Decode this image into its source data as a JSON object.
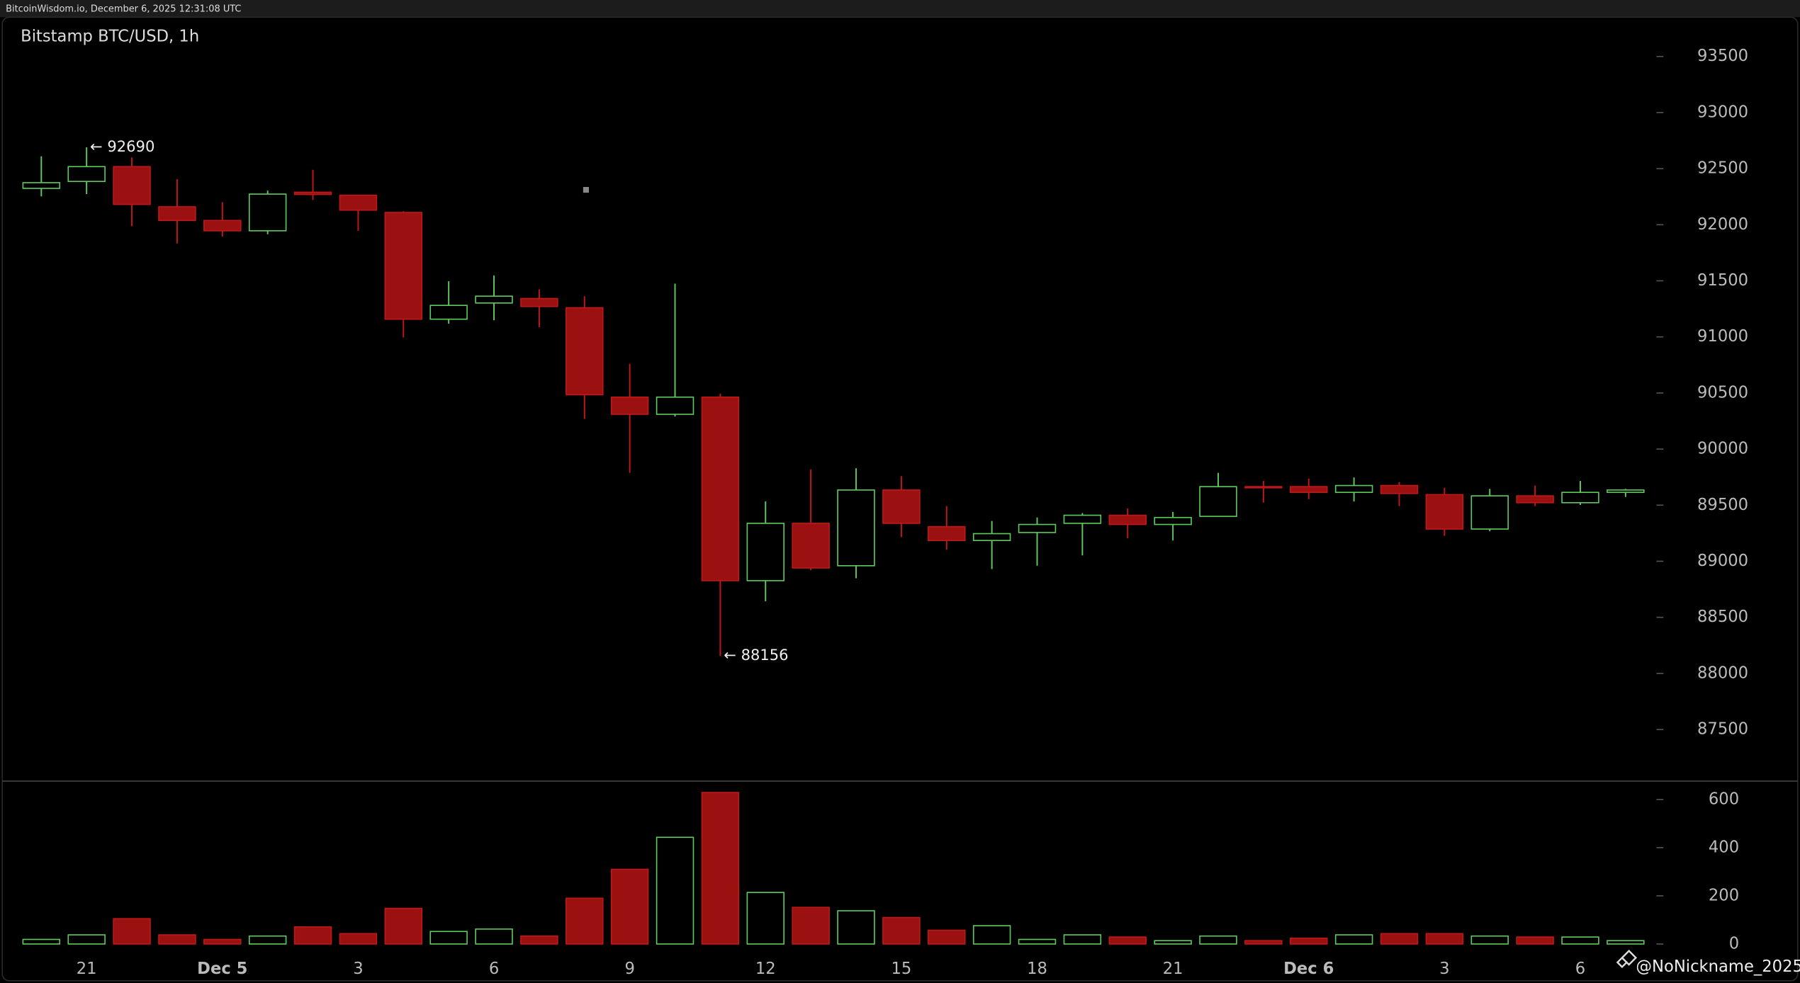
{
  "chart_data": {
    "type": "candlestick",
    "header": "BitcoinWisdom.io, December 6, 2025 12:31:08 UTC",
    "title": "Bitstamp BTC/USD, 1h",
    "categories": [
      null,
      "21",
      null,
      null,
      "Dec 5",
      null,
      null,
      "3",
      null,
      null,
      "6",
      null,
      null,
      "9",
      null,
      null,
      "12",
      null,
      null,
      "15",
      null,
      null,
      "18",
      null,
      null,
      "21",
      null,
      null,
      "Dec 6",
      null,
      null,
      "3",
      null,
      null,
      "6",
      null
    ],
    "open": [
      92324,
      92386,
      92518,
      92160,
      92038,
      91946,
      92290,
      92263,
      92109,
      91158,
      91302,
      91342,
      91260,
      90463,
      90310,
      90463,
      88827,
      89338,
      88960,
      89635,
      89308,
      89185,
      89256,
      89338,
      89410,
      89328,
      89400,
      89665,
      89665,
      89614,
      89675,
      89594,
      89287,
      89583,
      89522,
      89614
    ],
    "high": [
      92610,
      92690,
      92600,
      92406,
      92201,
      92304,
      92490,
      92263,
      92120,
      91496,
      91547,
      91424,
      91363,
      90760,
      91475,
      90494,
      89533,
      89819,
      89829,
      89758,
      89492,
      89359,
      89390,
      89430,
      89471,
      89440,
      89788,
      89716,
      89737,
      89747,
      89706,
      89655,
      89645,
      89675,
      89716,
      89645
    ],
    "low": [
      92253,
      92273,
      91987,
      91833,
      91895,
      91915,
      92220,
      91946,
      90995,
      91118,
      91148,
      91087,
      90269,
      89788,
      90290,
      88156,
      88643,
      88920,
      88848,
      89215,
      89103,
      88930,
      88960,
      89052,
      89205,
      89185,
      89400,
      89522,
      89553,
      89533,
      89492,
      89226,
      89267,
      89492,
      89502,
      89573
    ],
    "close": [
      92375,
      92518,
      92181,
      92038,
      91946,
      92273,
      92270,
      92130,
      91158,
      91281,
      91363,
      91271,
      90484,
      90310,
      90463,
      88827,
      89338,
      88940,
      89635,
      89338,
      89185,
      89246,
      89328,
      89410,
      89328,
      89390,
      89665,
      89655,
      89614,
      89675,
      89604,
      89287,
      89583,
      89522,
      89614,
      89635
    ],
    "volume": [
      19,
      38,
      105,
      38,
      19,
      33,
      71,
      43,
      148,
      52,
      62,
      33,
      190,
      310,
      443,
      629,
      214,
      152,
      138,
      110,
      57,
      76,
      19,
      38,
      29,
      14,
      33,
      14,
      24,
      38,
      43,
      43,
      33,
      29,
      29,
      14
    ],
    "ylim": [
      87050,
      93850
    ],
    "yticks": [
      87500,
      88000,
      88500,
      89000,
      89500,
      90000,
      90500,
      91000,
      91500,
      92000,
      92500,
      93000,
      93500
    ],
    "volume_ylim": [
      0,
      660
    ],
    "volume_yticks": [
      0,
      200,
      400,
      600
    ],
    "up_color": "#5ec95e",
    "down_color": "#9b1010",
    "annotations": [
      "← 92690",
      "← 88156"
    ],
    "watermark": "@NoNickname_2025"
  }
}
